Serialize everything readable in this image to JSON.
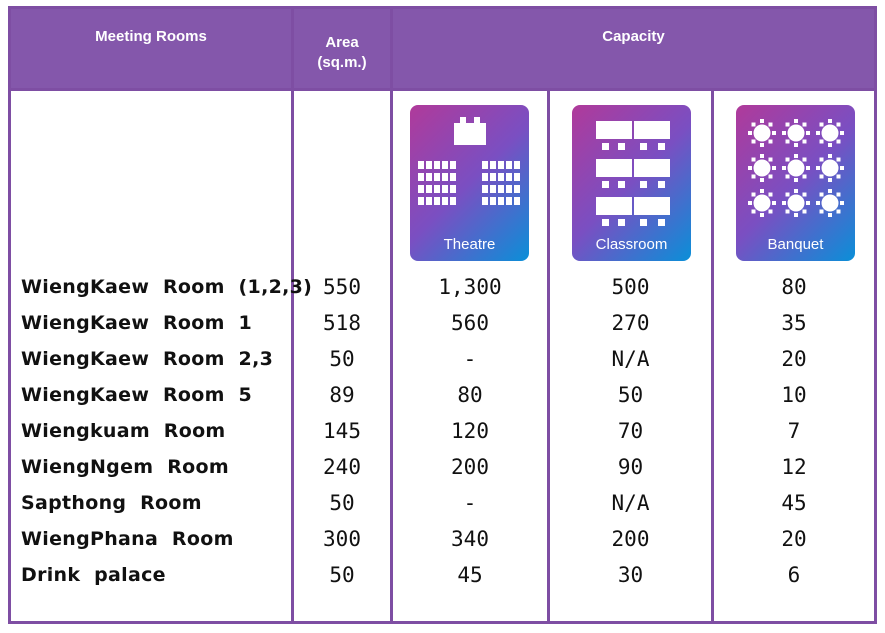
{
  "headers": {
    "meeting_rooms": "Meeting  Rooms",
    "area_line1": "Area",
    "area_line2": "(sq.m.)",
    "capacity": "Capacity"
  },
  "layout_icons": {
    "theatre": {
      "label": "Theatre",
      "icon": "theatre-seating-icon"
    },
    "classroom": {
      "label": "Classroom",
      "icon": "classroom-seating-icon"
    },
    "banquet": {
      "label": "Banquet",
      "icon": "banquet-seating-icon"
    }
  },
  "colors": {
    "frame": "#7e4ea3",
    "header_bg": "#8457ab",
    "icon_gradient": [
      "#b03a9a",
      "#7a4fc2",
      "#0a8fd8"
    ]
  },
  "rooms": [
    {
      "name": "WiengKaew  Room  (1,2,3)",
      "area": "550",
      "theatre": "1,300",
      "classroom": "500",
      "banquet": "80"
    },
    {
      "name": "WiengKaew  Room  1",
      "area": "518",
      "theatre": "560",
      "classroom": "270",
      "banquet": "35"
    },
    {
      "name": "WiengKaew  Room  2,3",
      "area": "50",
      "theatre": "-",
      "classroom": "N/A",
      "banquet": "20"
    },
    {
      "name": "WiengKaew  Room  5",
      "area": "89",
      "theatre": "80",
      "classroom": "50",
      "banquet": "10"
    },
    {
      "name": "Wiengkuam  Room",
      "area": "145",
      "theatre": "120",
      "classroom": "70",
      "banquet": "7"
    },
    {
      "name": "WiengNgem  Room",
      "area": "240",
      "theatre": "200",
      "classroom": "90",
      "banquet": "12"
    },
    {
      "name": "Sapthong  Room",
      "area": "50",
      "theatre": "-",
      "classroom": "N/A",
      "banquet": "45"
    },
    {
      "name": "WiengPhana  Room",
      "area": "300",
      "theatre": "340",
      "classroom": "200",
      "banquet": "20"
    },
    {
      "name": "Drink  palace",
      "area": "50",
      "theatre": "45",
      "classroom": "30",
      "banquet": "6"
    }
  ]
}
